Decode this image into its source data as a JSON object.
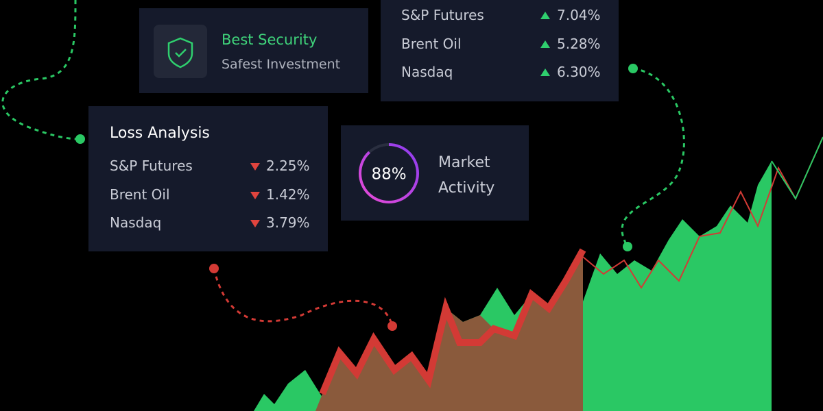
{
  "security_card": {
    "title": "Best Security",
    "subtitle": "Safest Investment"
  },
  "gains_card": {
    "rows": [
      [
        "S&P Futures",
        "7.04%"
      ],
      [
        "Brent Oil",
        "5.28%"
      ],
      [
        "Nasdaq",
        "6.30%"
      ]
    ]
  },
  "loss_card": {
    "title": "Loss Analysis",
    "rows": [
      [
        "S&P Futures",
        "2.25%"
      ],
      [
        "Brent Oil",
        "1.42%"
      ],
      [
        "Nasdaq",
        "3.79%"
      ]
    ]
  },
  "activity_card": {
    "percent": {
      "value": 88,
      "label": "88%"
    },
    "label": "Market Activity"
  }
}
